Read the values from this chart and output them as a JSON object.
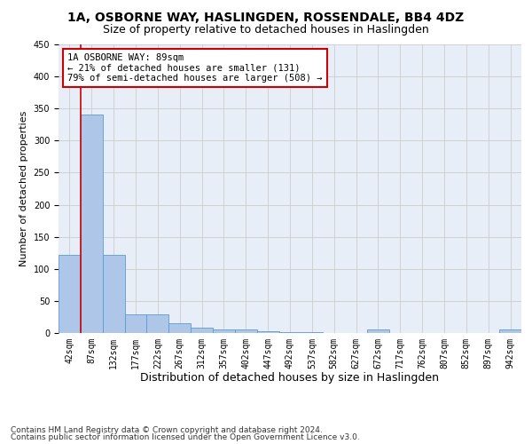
{
  "title": "1A, OSBORNE WAY, HASLINGDEN, ROSSENDALE, BB4 4DZ",
  "subtitle": "Size of property relative to detached houses in Haslingden",
  "xlabel": "Distribution of detached houses by size in Haslingden",
  "ylabel": "Number of detached properties",
  "bin_labels": [
    "42sqm",
    "87sqm",
    "132sqm",
    "177sqm",
    "222sqm",
    "267sqm",
    "312sqm",
    "357sqm",
    "402sqm",
    "447sqm",
    "492sqm",
    "537sqm",
    "582sqm",
    "627sqm",
    "672sqm",
    "717sqm",
    "762sqm",
    "807sqm",
    "852sqm",
    "897sqm",
    "942sqm"
  ],
  "bar_values": [
    122,
    340,
    122,
    29,
    29,
    15,
    9,
    6,
    5,
    3,
    2,
    2,
    0,
    0,
    5,
    0,
    0,
    0,
    0,
    0,
    5
  ],
  "bar_color": "#aec6e8",
  "bar_edge_color": "#5b9bd5",
  "vline_color": "#cc0000",
  "vline_x_index": 0.5,
  "grid_color": "#cccccc",
  "background_color": "#e8eef8",
  "ylim": [
    0,
    450
  ],
  "yticks": [
    0,
    50,
    100,
    150,
    200,
    250,
    300,
    350,
    400,
    450
  ],
  "annotation_line1": "1A OSBORNE WAY: 89sqm",
  "annotation_line2": "← 21% of detached houses are smaller (131)",
  "annotation_line3": "79% of semi-detached houses are larger (508) →",
  "annotation_box_facecolor": "#ffffff",
  "annotation_box_edgecolor": "#cc0000",
  "footer1": "Contains HM Land Registry data © Crown copyright and database right 2024.",
  "footer2": "Contains public sector information licensed under the Open Government Licence v3.0.",
  "title_fontsize": 10,
  "subtitle_fontsize": 9,
  "xlabel_fontsize": 9,
  "ylabel_fontsize": 8,
  "tick_fontsize": 7,
  "annotation_fontsize": 7.5,
  "footer_fontsize": 6.5
}
